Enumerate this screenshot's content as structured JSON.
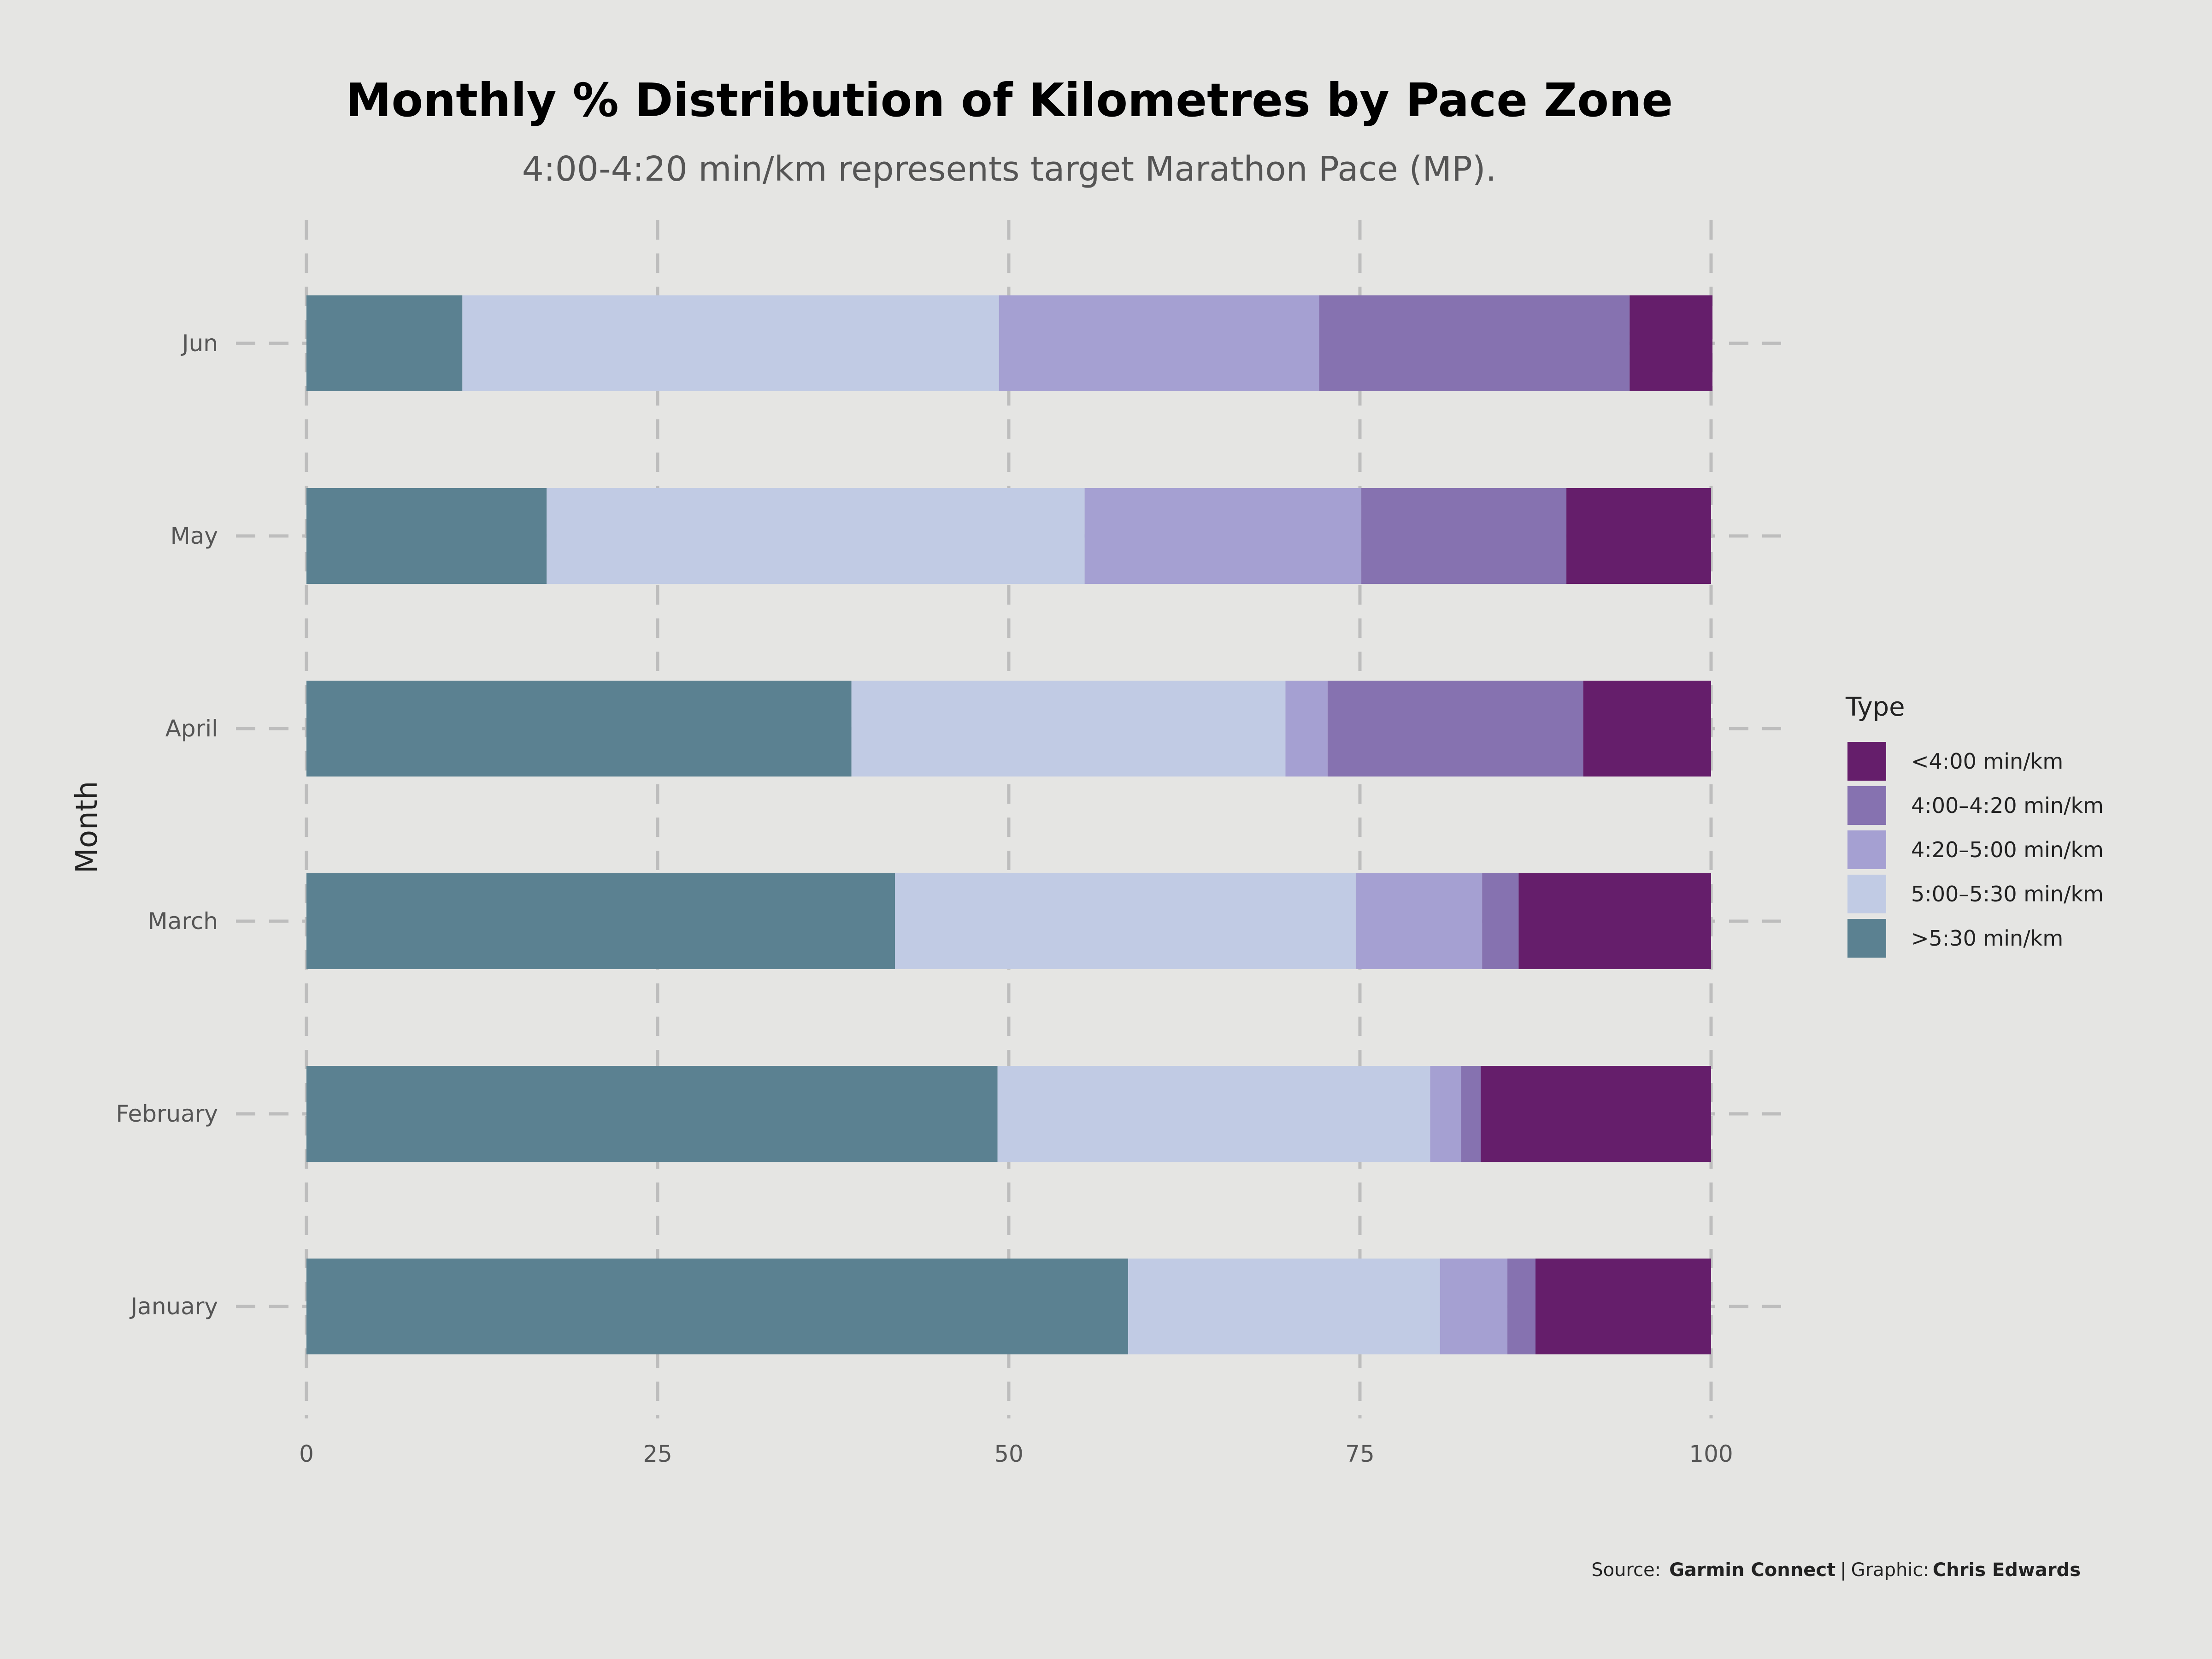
{
  "chart_data": {
    "type": "bar",
    "orientation": "horizontal",
    "stacked": true,
    "title": "Monthly % Distribution of Kilometres by Pace Zone",
    "subtitle": "4:00-4:20 min/km represents target Marathon Pace (MP).",
    "xlabel": "",
    "ylabel": "Month",
    "xlim": [
      0,
      100
    ],
    "x_ticks": [
      "0",
      "25",
      "50",
      "75",
      "100"
    ],
    "grid": true,
    "legend": {
      "title": "Type",
      "position": "right"
    },
    "categories": [
      "January",
      "February",
      "March",
      "April",
      "May",
      "Jun"
    ],
    "series": [
      {
        "name": ">5:30 min/km",
        "color": "#5b8191",
        "values": [
          58.5,
          49.2,
          41.9,
          38.8,
          17.1,
          11.1
        ]
      },
      {
        "name": "5:00–5:30 min/km",
        "color": "#c1cbe4",
        "values": [
          22.2,
          30.8,
          32.8,
          30.9,
          38.3,
          38.2
        ]
      },
      {
        "name": "4:20–5:00 min/km",
        "color": "#a5a0d2",
        "values": [
          4.8,
          2.2,
          9.0,
          3.0,
          19.7,
          22.8
        ]
      },
      {
        "name": "4:00–4:20 min/km",
        "color": "#8672b0",
        "values": [
          2.0,
          1.4,
          2.6,
          18.2,
          14.6,
          22.1
        ]
      },
      {
        "name": "<4:00 min/km",
        "color": "#651e6b",
        "values": [
          12.5,
          16.4,
          13.7,
          9.1,
          10.3,
          5.9
        ]
      }
    ],
    "legend_order": [
      "<4:00 min/km",
      "4:00–4:20 min/km",
      "4:20–5:00 min/km",
      "5:00–5:30 min/km",
      ">5:30 min/km"
    ]
  },
  "caption": {
    "source_label": "Source:",
    "source_name": "Garmin Connect",
    "separator": "|",
    "graphic_label": "Graphic:",
    "author": "Chris Edwards"
  }
}
